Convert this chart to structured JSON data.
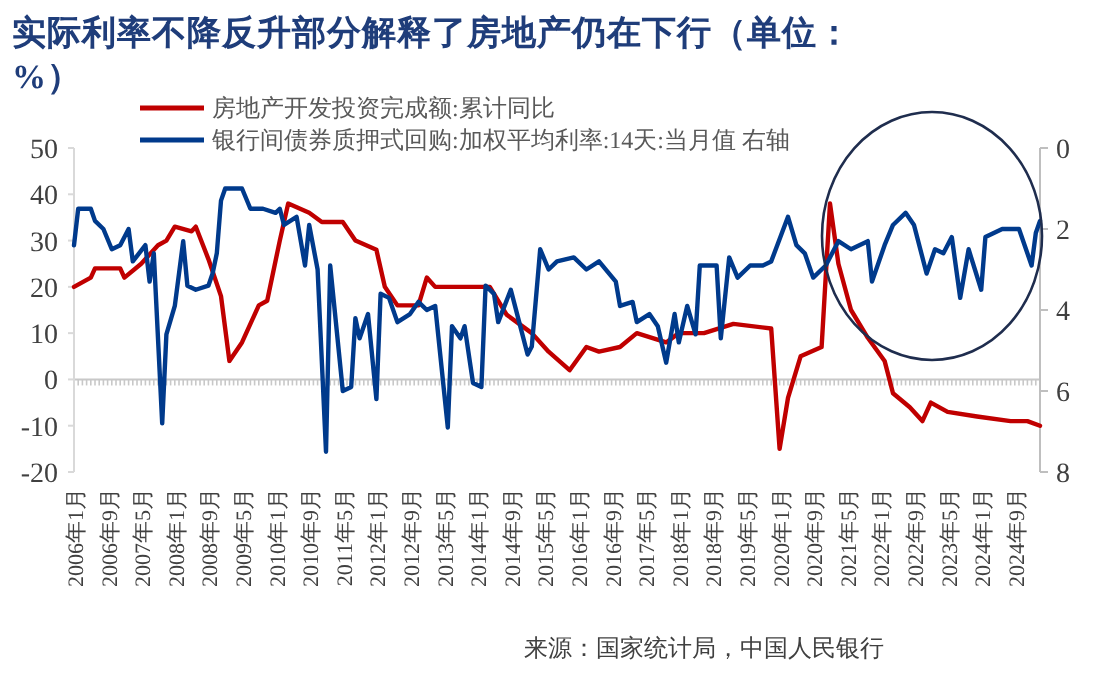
{
  "chart_data": {
    "type": "line",
    "title": "实际利率不降反升部分解释了房地产仍在下行（单位：%）",
    "annotations": [
      "来源：国家统计局，中国人民银行"
    ],
    "xlim": [
      "2006-01",
      "2025-03"
    ],
    "xticks": [
      {
        "value": "2006-01",
        "label": "2006年1月"
      },
      {
        "value": "2006-09",
        "label": "2006年9月"
      },
      {
        "value": "2007-05",
        "label": "2007年5月"
      },
      {
        "value": "2008-01",
        "label": "2008年1月"
      },
      {
        "value": "2008-09",
        "label": "2008年9月"
      },
      {
        "value": "2009-05",
        "label": "2009年5月"
      },
      {
        "value": "2010-01",
        "label": "2010年1月"
      },
      {
        "value": "2010-09",
        "label": "2010年9月"
      },
      {
        "value": "2011-05",
        "label": "2011年5月"
      },
      {
        "value": "2012-01",
        "label": "2012年1月"
      },
      {
        "value": "2012-09",
        "label": "2012年9月"
      },
      {
        "value": "2013-05",
        "label": "2013年5月"
      },
      {
        "value": "2014-01",
        "label": "2014年1月"
      },
      {
        "value": "2014-09",
        "label": "2014年9月"
      },
      {
        "value": "2015-05",
        "label": "2015年5月"
      },
      {
        "value": "2016-01",
        "label": "2016年1月"
      },
      {
        "value": "2016-09",
        "label": "2016年9月"
      },
      {
        "value": "2017-05",
        "label": "2017年5月"
      },
      {
        "value": "2018-01",
        "label": "2018年1月"
      },
      {
        "value": "2018-09",
        "label": "2018年9月"
      },
      {
        "value": "2019-05",
        "label": "2019年5月"
      },
      {
        "value": "2020-01",
        "label": "2020年1月"
      },
      {
        "value": "2020-09",
        "label": "2020年9月"
      },
      {
        "value": "2021-05",
        "label": "2021年5月"
      },
      {
        "value": "2022-01",
        "label": "2022年1月"
      },
      {
        "value": "2022-09",
        "label": "2022年9月"
      },
      {
        "value": "2023-05",
        "label": "2023年5月"
      },
      {
        "value": "2024-01",
        "label": "2024年1月"
      },
      {
        "value": "2024-09",
        "label": "2024年9月"
      }
    ],
    "ylim": [
      -20,
      50
    ],
    "yticks": [
      -20,
      -10,
      0,
      10,
      20,
      30,
      40,
      50
    ],
    "y2lim": [
      8,
      0
    ],
    "y2ticks": [
      0,
      2,
      4,
      6,
      8
    ],
    "legend": "top",
    "marker": "none",
    "line_style": "solid",
    "series": [
      {
        "name": "房地产开发投资完成额:累计同比",
        "color": "#c00000",
        "x": [
          "2006-01",
          "2006-05",
          "2006-06",
          "2006-12",
          "2007-01",
          "2007-05",
          "2007-09",
          "2007-11",
          "2008-01",
          "2008-05",
          "2008-06",
          "2008-09",
          "2008-12",
          "2009-02",
          "2009-05",
          "2009-09",
          "2009-11",
          "2010-02",
          "2010-04",
          "2010-09",
          "2010-12",
          "2011-05",
          "2011-08",
          "2012-01",
          "2012-03",
          "2012-06",
          "2012-11",
          "2013-01",
          "2013-03",
          "2014-04",
          "2014-08",
          "2015-02",
          "2015-06",
          "2015-11",
          "2016-03",
          "2016-06",
          "2016-11",
          "2017-03",
          "2017-10",
          "2018-01",
          "2018-07",
          "2019-02",
          "2019-11",
          "2020-01",
          "2020-03",
          "2020-06",
          "2020-11",
          "2021-01",
          "2021-03",
          "2021-06",
          "2021-10",
          "2022-02",
          "2022-04",
          "2022-08",
          "2022-11",
          "2023-01",
          "2023-05",
          "2023-12",
          "2024-08",
          "2024-12",
          "2025-03"
        ],
        "values": [
          20,
          22,
          24,
          24,
          22,
          25,
          29,
          30,
          33,
          32,
          33,
          26,
          18,
          4,
          8,
          16,
          17,
          30,
          38,
          36,
          34,
          34,
          30,
          28,
          20,
          16,
          16,
          22,
          20,
          20,
          14,
          10,
          6,
          2,
          7,
          6,
          7,
          10,
          8,
          10,
          10,
          12,
          11,
          -15,
          -4,
          5,
          7,
          38,
          25,
          15,
          9,
          4,
          -3,
          -6,
          -9,
          -5,
          -7,
          -8,
          -9,
          -9,
          -10
        ]
      },
      {
        "name": "银行间债券质押式回购:加权平均利率:14天:当月值 右轴",
        "color": "#003a8c",
        "axis": "y2",
        "x": [
          "2006-01",
          "2006-02",
          "2006-05",
          "2006-06",
          "2006-08",
          "2006-10",
          "2006-12",
          "2007-02",
          "2007-03",
          "2007-06",
          "2007-07",
          "2007-08",
          "2007-10",
          "2007-11",
          "2008-01",
          "2008-03",
          "2008-04",
          "2008-06",
          "2008-09",
          "2008-10",
          "2008-11",
          "2008-12",
          "2009-01",
          "2009-05",
          "2009-07",
          "2009-10",
          "2010-01",
          "2010-02",
          "2010-03",
          "2010-06",
          "2010-08",
          "2010-09",
          "2010-11",
          "2011-01",
          "2011-02",
          "2011-05",
          "2011-07",
          "2011-08",
          "2011-09",
          "2011-11",
          "2012-01",
          "2012-02",
          "2012-04",
          "2012-06",
          "2012-09",
          "2012-11",
          "2013-01",
          "2013-03",
          "2013-06",
          "2013-07",
          "2013-09",
          "2013-10",
          "2013-12",
          "2014-02",
          "2014-03",
          "2014-05",
          "2014-06",
          "2014-09",
          "2014-11",
          "2015-01",
          "2015-02",
          "2015-04",
          "2015-06",
          "2015-08",
          "2015-12",
          "2016-03",
          "2016-06",
          "2016-10",
          "2016-11",
          "2017-02",
          "2017-03",
          "2017-06",
          "2017-08",
          "2017-10",
          "2017-12",
          "2018-01",
          "2018-03",
          "2018-05",
          "2018-06",
          "2018-10",
          "2018-11",
          "2019-01",
          "2019-03",
          "2019-06",
          "2019-09",
          "2019-11",
          "2020-03",
          "2020-05",
          "2020-07",
          "2020-09",
          "2020-12",
          "2021-03",
          "2021-06",
          "2021-10",
          "2021-11",
          "2022-02",
          "2022-04",
          "2022-07",
          "2022-09",
          "2022-12",
          "2023-02",
          "2023-04",
          "2023-06",
          "2023-08",
          "2023-10",
          "2024-01",
          "2024-02",
          "2024-06",
          "2024-10",
          "2025-01",
          "2025-02",
          "2025-03"
        ],
        "values": [
          2.4,
          1.5,
          1.5,
          1.8,
          2.0,
          2.5,
          2.4,
          2.0,
          2.8,
          2.4,
          3.3,
          2.6,
          6.8,
          4.6,
          3.9,
          2.3,
          3.4,
          3.5,
          3.4,
          3.1,
          2.6,
          1.3,
          1.0,
          1.0,
          1.5,
          1.5,
          1.6,
          1.5,
          1.9,
          1.7,
          2.9,
          1.9,
          3.0,
          7.5,
          2.9,
          6.0,
          5.9,
          4.2,
          4.7,
          4.1,
          6.2,
          3.6,
          3.7,
          4.3,
          4.1,
          3.8,
          4.0,
          3.9,
          6.9,
          4.4,
          4.7,
          4.4,
          5.8,
          5.9,
          3.4,
          3.6,
          4.3,
          3.5,
          4.3,
          5.1,
          4.9,
          2.5,
          3.0,
          2.8,
          2.7,
          3.0,
          2.8,
          3.3,
          3.9,
          3.8,
          4.3,
          4.1,
          4.4,
          5.3,
          4.1,
          4.8,
          3.9,
          4.6,
          2.9,
          2.9,
          4.7,
          2.7,
          3.2,
          2.9,
          2.9,
          2.8,
          1.7,
          2.4,
          2.6,
          3.2,
          2.9,
          2.3,
          2.5,
          2.3,
          3.3,
          2.4,
          1.9,
          1.6,
          1.9,
          3.1,
          2.5,
          2.6,
          2.2,
          3.7,
          2.5,
          3.5,
          2.2,
          2.0,
          2.0,
          2.9,
          2.1,
          1.8
        ]
      }
    ]
  }
}
